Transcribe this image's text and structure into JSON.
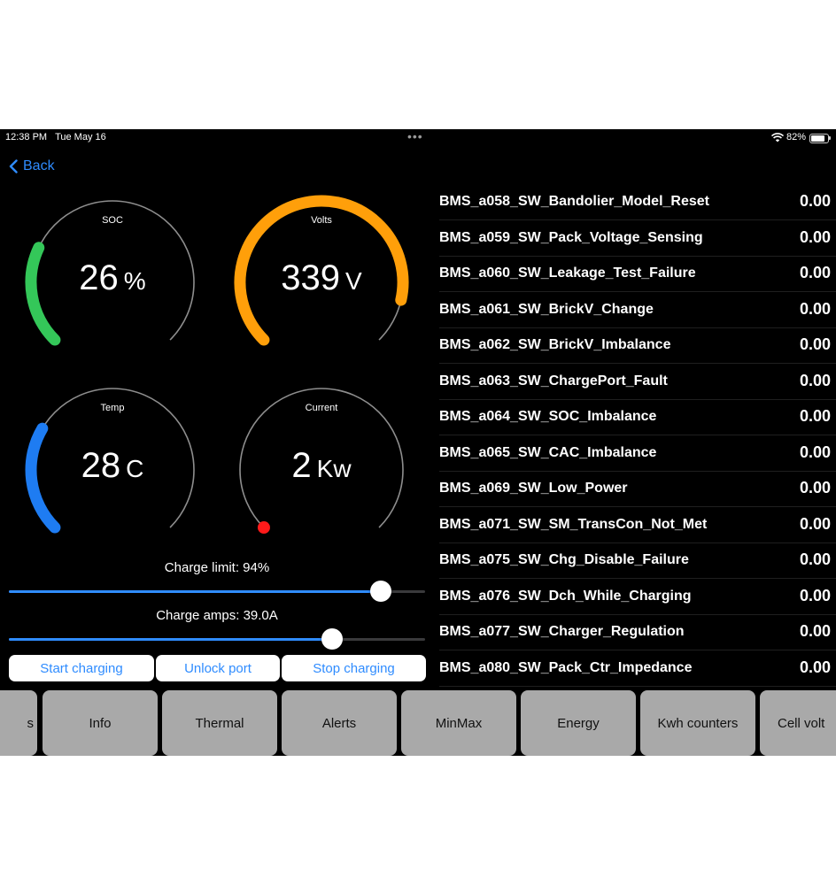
{
  "status_bar": {
    "time": "12:38 PM",
    "date": "Tue May 16",
    "dots": "•••",
    "battery_text": "82%",
    "battery_level": 0.82
  },
  "nav": {
    "back_label": "Back"
  },
  "gauges": {
    "soc": {
      "label": "SOC",
      "value": "26",
      "unit": "%",
      "fraction": 0.26,
      "color": "#34c759"
    },
    "volts": {
      "label": "Volts",
      "value": "339",
      "unit": "V",
      "fraction": 0.88,
      "color": "#ff9f0a"
    },
    "temp": {
      "label": "Temp",
      "value": "28",
      "unit": "C",
      "fraction": 0.28,
      "color": "#1e7cf2"
    },
    "current": {
      "label": "Current",
      "value": "2",
      "unit": "Kw",
      "fraction": 0.0,
      "color": "#ff1a1a"
    }
  },
  "sliders": {
    "charge_limit": {
      "label": "Charge limit: 94%",
      "fraction": 0.894
    },
    "charge_amps": {
      "label": "Charge amps: 39.0A",
      "fraction": 0.777
    }
  },
  "actions": {
    "start": "Start charging",
    "unlock": "Unlock port",
    "stop": "Stop charging"
  },
  "alerts": [
    {
      "name": "BMS_a058_SW_Bandolier_Model_Reset",
      "value": "0.00"
    },
    {
      "name": "BMS_a059_SW_Pack_Voltage_Sensing",
      "value": "0.00"
    },
    {
      "name": "BMS_a060_SW_Leakage_Test_Failure",
      "value": "0.00"
    },
    {
      "name": "BMS_a061_SW_BrickV_Change",
      "value": "0.00"
    },
    {
      "name": "BMS_a062_SW_BrickV_Imbalance",
      "value": "0.00"
    },
    {
      "name": "BMS_a063_SW_ChargePort_Fault",
      "value": "0.00"
    },
    {
      "name": "BMS_a064_SW_SOC_Imbalance",
      "value": "0.00"
    },
    {
      "name": "BMS_a065_SW_CAC_Imbalance",
      "value": "0.00"
    },
    {
      "name": "BMS_a069_SW_Low_Power",
      "value": "0.00"
    },
    {
      "name": "BMS_a071_SW_SM_TransCon_Not_Met",
      "value": "0.00"
    },
    {
      "name": "BMS_a075_SW_Chg_Disable_Failure",
      "value": "0.00"
    },
    {
      "name": "BMS_a076_SW_Dch_While_Charging",
      "value": "0.00"
    },
    {
      "name": "BMS_a077_SW_Charger_Regulation",
      "value": "0.00"
    },
    {
      "name": "BMS_a080_SW_Pack_Ctr_Impedance",
      "value": "0.00"
    }
  ],
  "tabs": [
    "s",
    "Info",
    "Thermal",
    "Alerts",
    "MinMax",
    "Energy",
    "Kwh counters",
    "Cell volt"
  ],
  "colors": {
    "accent": "#2f8cff",
    "background": "#000000",
    "tab_bg": "#a9a9a9"
  }
}
